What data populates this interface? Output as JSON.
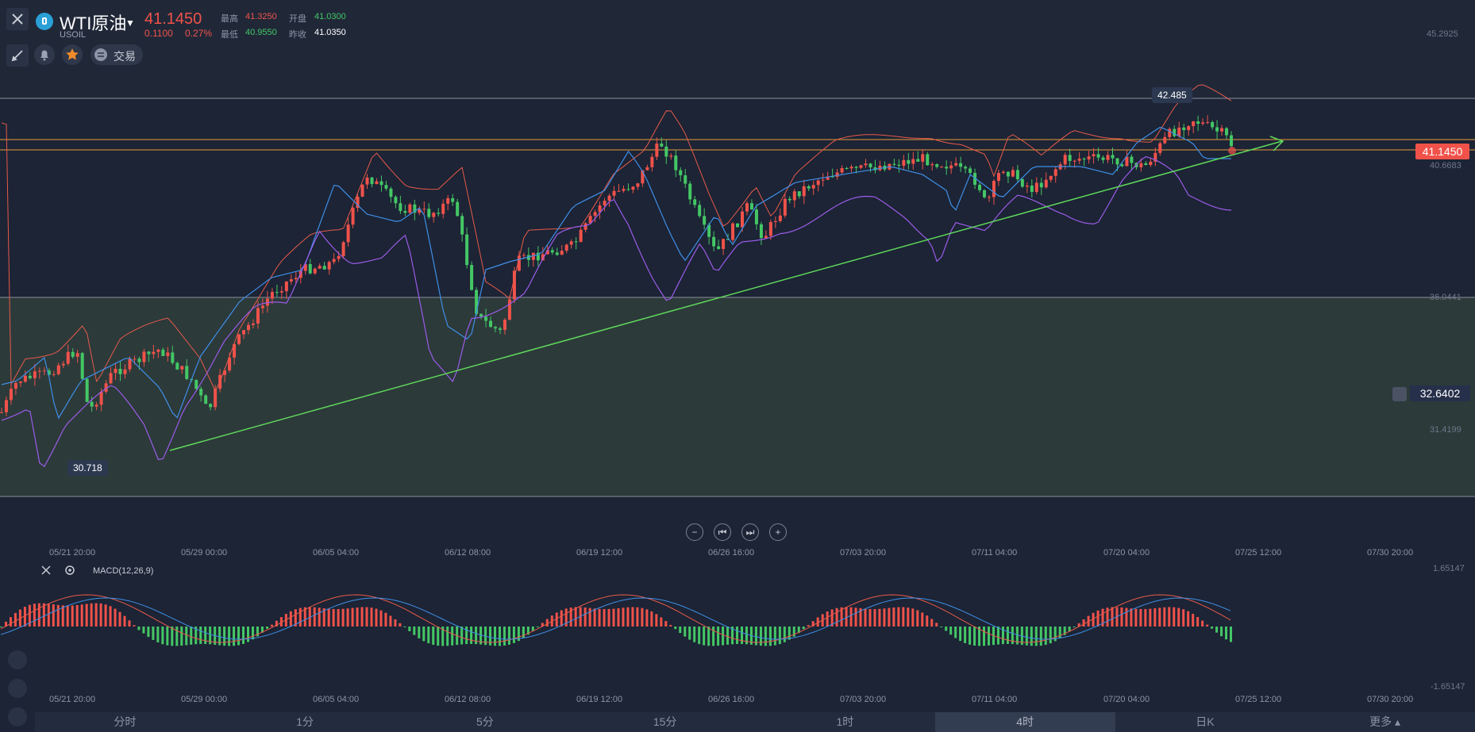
{
  "header": {
    "symbol": "WTI原油",
    "code": "USOIL",
    "price": "41.1450",
    "change": "0.1100",
    "change_pct": "0.27%",
    "high_label": "最高",
    "high": "41.3250",
    "open_label": "开盘",
    "open": "41.0300",
    "low_label": "最低",
    "low": "40.9550",
    "prev_label": "昨收",
    "prev": "41.0350",
    "trade_label": "交易"
  },
  "price_axis": {
    "top": "45.2925",
    "level1": "40.6683",
    "level2": "36.0441",
    "level3": "31.4199",
    "current": "41.1450",
    "alert": "32.6402"
  },
  "annotations": {
    "high_bubble": "42.485",
    "low_bubble": "30.718"
  },
  "x_labels": [
    "05/21 20:00",
    "05/29 00:00",
    "06/05 04:00",
    "06/12 08:00",
    "06/19 12:00",
    "06/26 16:00",
    "07/03 20:00",
    "07/11 04:00",
    "07/20 04:00",
    "07/25 12:00",
    "07/30 20:00"
  ],
  "macd": {
    "label": "MACD(12,26,9)",
    "top": "1.65147",
    "bottom": "-1.65147"
  },
  "timeframes": [
    "分时",
    "1分",
    "5分",
    "15分",
    "1时",
    "4时",
    "日K",
    "更多"
  ],
  "active_timeframe": "4时",
  "colors": {
    "up": "#f0524a",
    "down": "#44c765",
    "ma": "#3f8fe8",
    "upper": "#e85a4a",
    "lower": "#9b5be8",
    "trend": "#5fd85a",
    "hline": "#e89a3a"
  }
}
